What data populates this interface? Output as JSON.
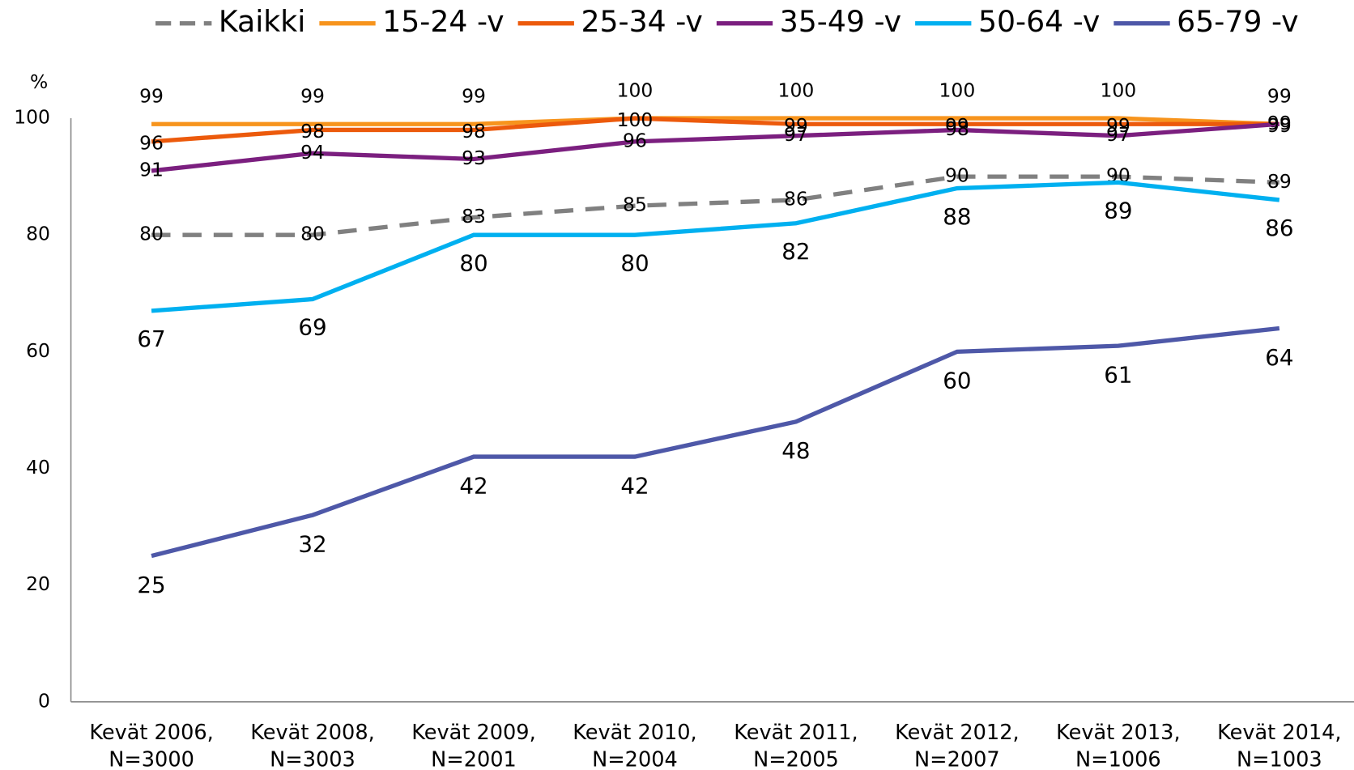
{
  "chart_data": {
    "type": "line",
    "y_label": "%",
    "categories": [
      "Kevät 2006,\nN=3000",
      "Kevät 2008,\nN=3003",
      "Kevät 2009,\nN=2001",
      "Kevät 2010,\nN=2004",
      "Kevät 2011,\nN=2005",
      "Kevät 2012,\nN=2007",
      "Kevät 2013,\nN=1006",
      "Kevät 2014,\nN=1003"
    ],
    "series": [
      {
        "name": "Kaikki",
        "color": "#808080",
        "dashed": true,
        "values": [
          80,
          80,
          83,
          85,
          86,
          90,
          90,
          89
        ]
      },
      {
        "name": "15-24 -v",
        "color": "#f7941d",
        "values": [
          99,
          99,
          99,
          100,
          100,
          100,
          100,
          99
        ]
      },
      {
        "name": "25-34 -v",
        "color": "#ec5a0c",
        "values": [
          96,
          98,
          98,
          100,
          99,
          99,
          99,
          99
        ]
      },
      {
        "name": "35-49 -v",
        "color": "#7b1f7f",
        "values": [
          91,
          94,
          93,
          96,
          97,
          98,
          97,
          99
        ]
      },
      {
        "name": "50-64 -v",
        "color": "#00b0f0",
        "values": [
          67,
          69,
          80,
          80,
          82,
          88,
          89,
          86
        ]
      },
      {
        "name": "65-79 -v",
        "color": "#4e58a8",
        "values": [
          25,
          32,
          42,
          42,
          48,
          60,
          61,
          64
        ]
      }
    ],
    "ylim": [
      0,
      100
    ],
    "yticks": [
      0,
      20,
      40,
      60,
      80,
      100
    ],
    "grid": false,
    "legend": "top"
  }
}
